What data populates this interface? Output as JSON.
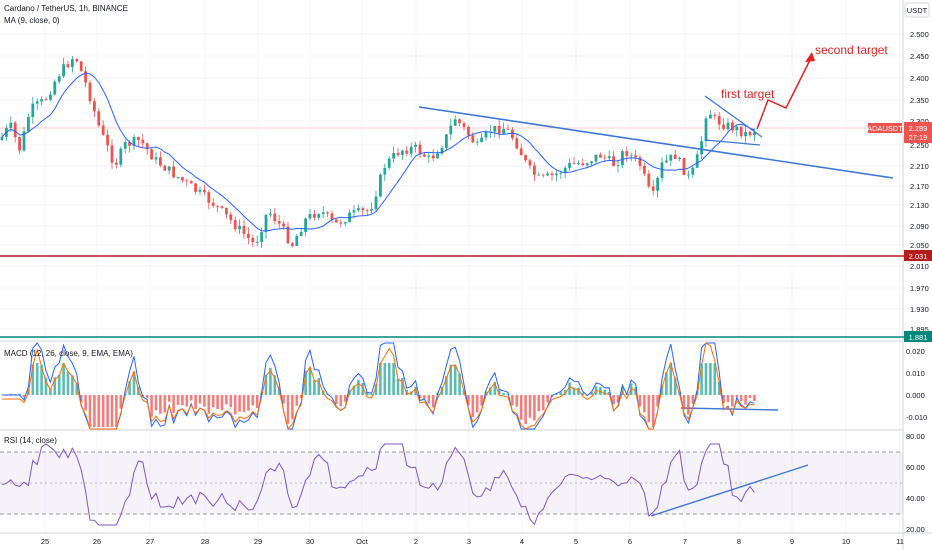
{
  "header": {
    "symbol": "Cardano / TetherUS, 1h, BINANCE",
    "ma_label": "MA (9, close, 0)"
  },
  "currency_button": "USDT",
  "price_axis": [
    "2.500",
    "2.450",
    "2.400",
    "2.350",
    "2.300",
    "2.250",
    "2.210",
    "2.170",
    "2.130",
    "2.090",
    "2.050",
    "2.010",
    "1.970",
    "1.930",
    "1.895"
  ],
  "price_tags": {
    "symbol": "ADAUSDT",
    "last": "2.289",
    "countdown": "27:19",
    "support_high": "2.031",
    "support_low": "1.881"
  },
  "macd": {
    "label": "MACD (12, 26, close, 9, EMA, EMA)",
    "axis": [
      "0.020",
      "0.010",
      "0.000",
      "-0.010"
    ]
  },
  "rsi": {
    "label": "RSI (14, close)",
    "axis": [
      "80.00",
      "60.00",
      "40.00",
      "20.00"
    ]
  },
  "time_axis": [
    "25",
    "26",
    "27",
    "28",
    "29",
    "30",
    "Oct",
    "2",
    "3",
    "4",
    "5",
    "6",
    "7",
    "8",
    "9",
    "10",
    "11"
  ],
  "annotations": {
    "first_target": "first target",
    "second_target": "second target"
  },
  "colors": {
    "up": "#26a69a",
    "down": "#ef5350",
    "ma": "#2962ff",
    "trendline": "#3c78d8",
    "support_red": "#b71c1c",
    "support_teal": "#00897b",
    "annotation": "#e02424",
    "rsi_line": "#7e57c2"
  }
}
